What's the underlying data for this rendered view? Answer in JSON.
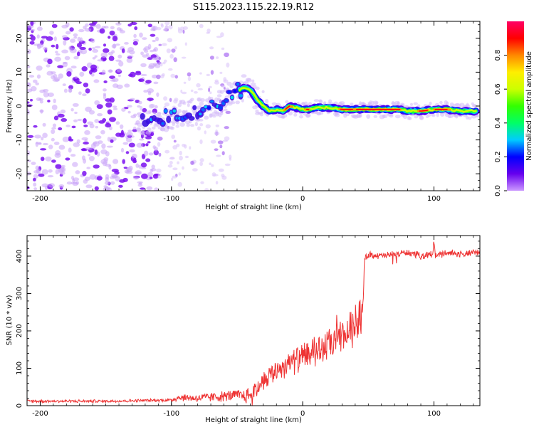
{
  "title": "S115.2023.115.22.19.R12",
  "chart_data": [
    {
      "type": "heatmap",
      "xlabel": "Height of straight line (km)",
      "ylabel": "Frequency (Hz)",
      "xlim": [
        -210,
        135
      ],
      "ylim": [
        -25,
        25
      ],
      "xticks": [
        "-200",
        "-100",
        "0",
        "100"
      ],
      "yticks": [
        "-20",
        "-10",
        "0",
        "10",
        "20"
      ],
      "colorbar": {
        "label": "Normalized spectral amplitude",
        "range": [
          0.0,
          1.0
        ],
        "ticks": [
          "0.0",
          "0.2",
          "0.4",
          "0.6",
          "0.8"
        ],
        "colors": [
          "#cc99ff",
          "#6600ee",
          "#0000ff",
          "#00ccff",
          "#00ff66",
          "#33ff00",
          "#ccff00",
          "#ffee00",
          "#ff8800",
          "#ff0000",
          "#ff0066"
        ]
      },
      "trace": {
        "x": [
          -120,
          -110,
          -100,
          -90,
          -80,
          -70,
          -60,
          -50,
          -45,
          -40,
          -35,
          -30,
          -25,
          -20,
          -15,
          -10,
          -5,
          0,
          5,
          10,
          20,
          30,
          40,
          60,
          75,
          80,
          90,
          100,
          110,
          120,
          135
        ],
        "y": [
          -4.5,
          -3.5,
          -3.0,
          -2.5,
          -1.5,
          -0.5,
          2.0,
          4.5,
          5.5,
          5.0,
          2.0,
          0.0,
          -1.5,
          -1.0,
          -1.5,
          0.0,
          -0.5,
          -1.0,
          -1.0,
          -0.5,
          -0.5,
          -1.0,
          -1.0,
          -1.0,
          -1.0,
          -1.5,
          -1.5,
          -1.0,
          -1.0,
          -1.5,
          -1.5
        ]
      }
    },
    {
      "type": "line",
      "xlabel": "Height of straight line (km)",
      "ylabel": "SNR (10 * v/v)",
      "xlim": [
        -210,
        135
      ],
      "ylim": [
        0,
        455
      ],
      "xticks": [
        "-200",
        "-100",
        "0",
        "100"
      ],
      "yticks": [
        "0",
        "100",
        "200",
        "300",
        "400"
      ],
      "color": "#ee3333",
      "series": [
        {
          "x": [
            -210,
            -150,
            -100,
            -95,
            -80,
            -60,
            -50,
            -45,
            -40,
            -35,
            -30,
            -20,
            -10,
            0,
            10,
            20,
            30,
            40,
            45,
            46,
            47,
            50,
            60,
            70,
            80,
            90,
            95,
            99,
            100,
            101,
            105,
            110,
            120,
            135
          ],
          "y": [
            12,
            12,
            15,
            22,
            20,
            25,
            28,
            25,
            30,
            45,
            70,
            95,
            115,
            130,
            145,
            160,
            180,
            215,
            245,
            250,
            390,
            405,
            400,
            405,
            410,
            400,
            405,
            405,
            440,
            400,
            405,
            410,
            405,
            410
          ]
        }
      ]
    }
  ]
}
